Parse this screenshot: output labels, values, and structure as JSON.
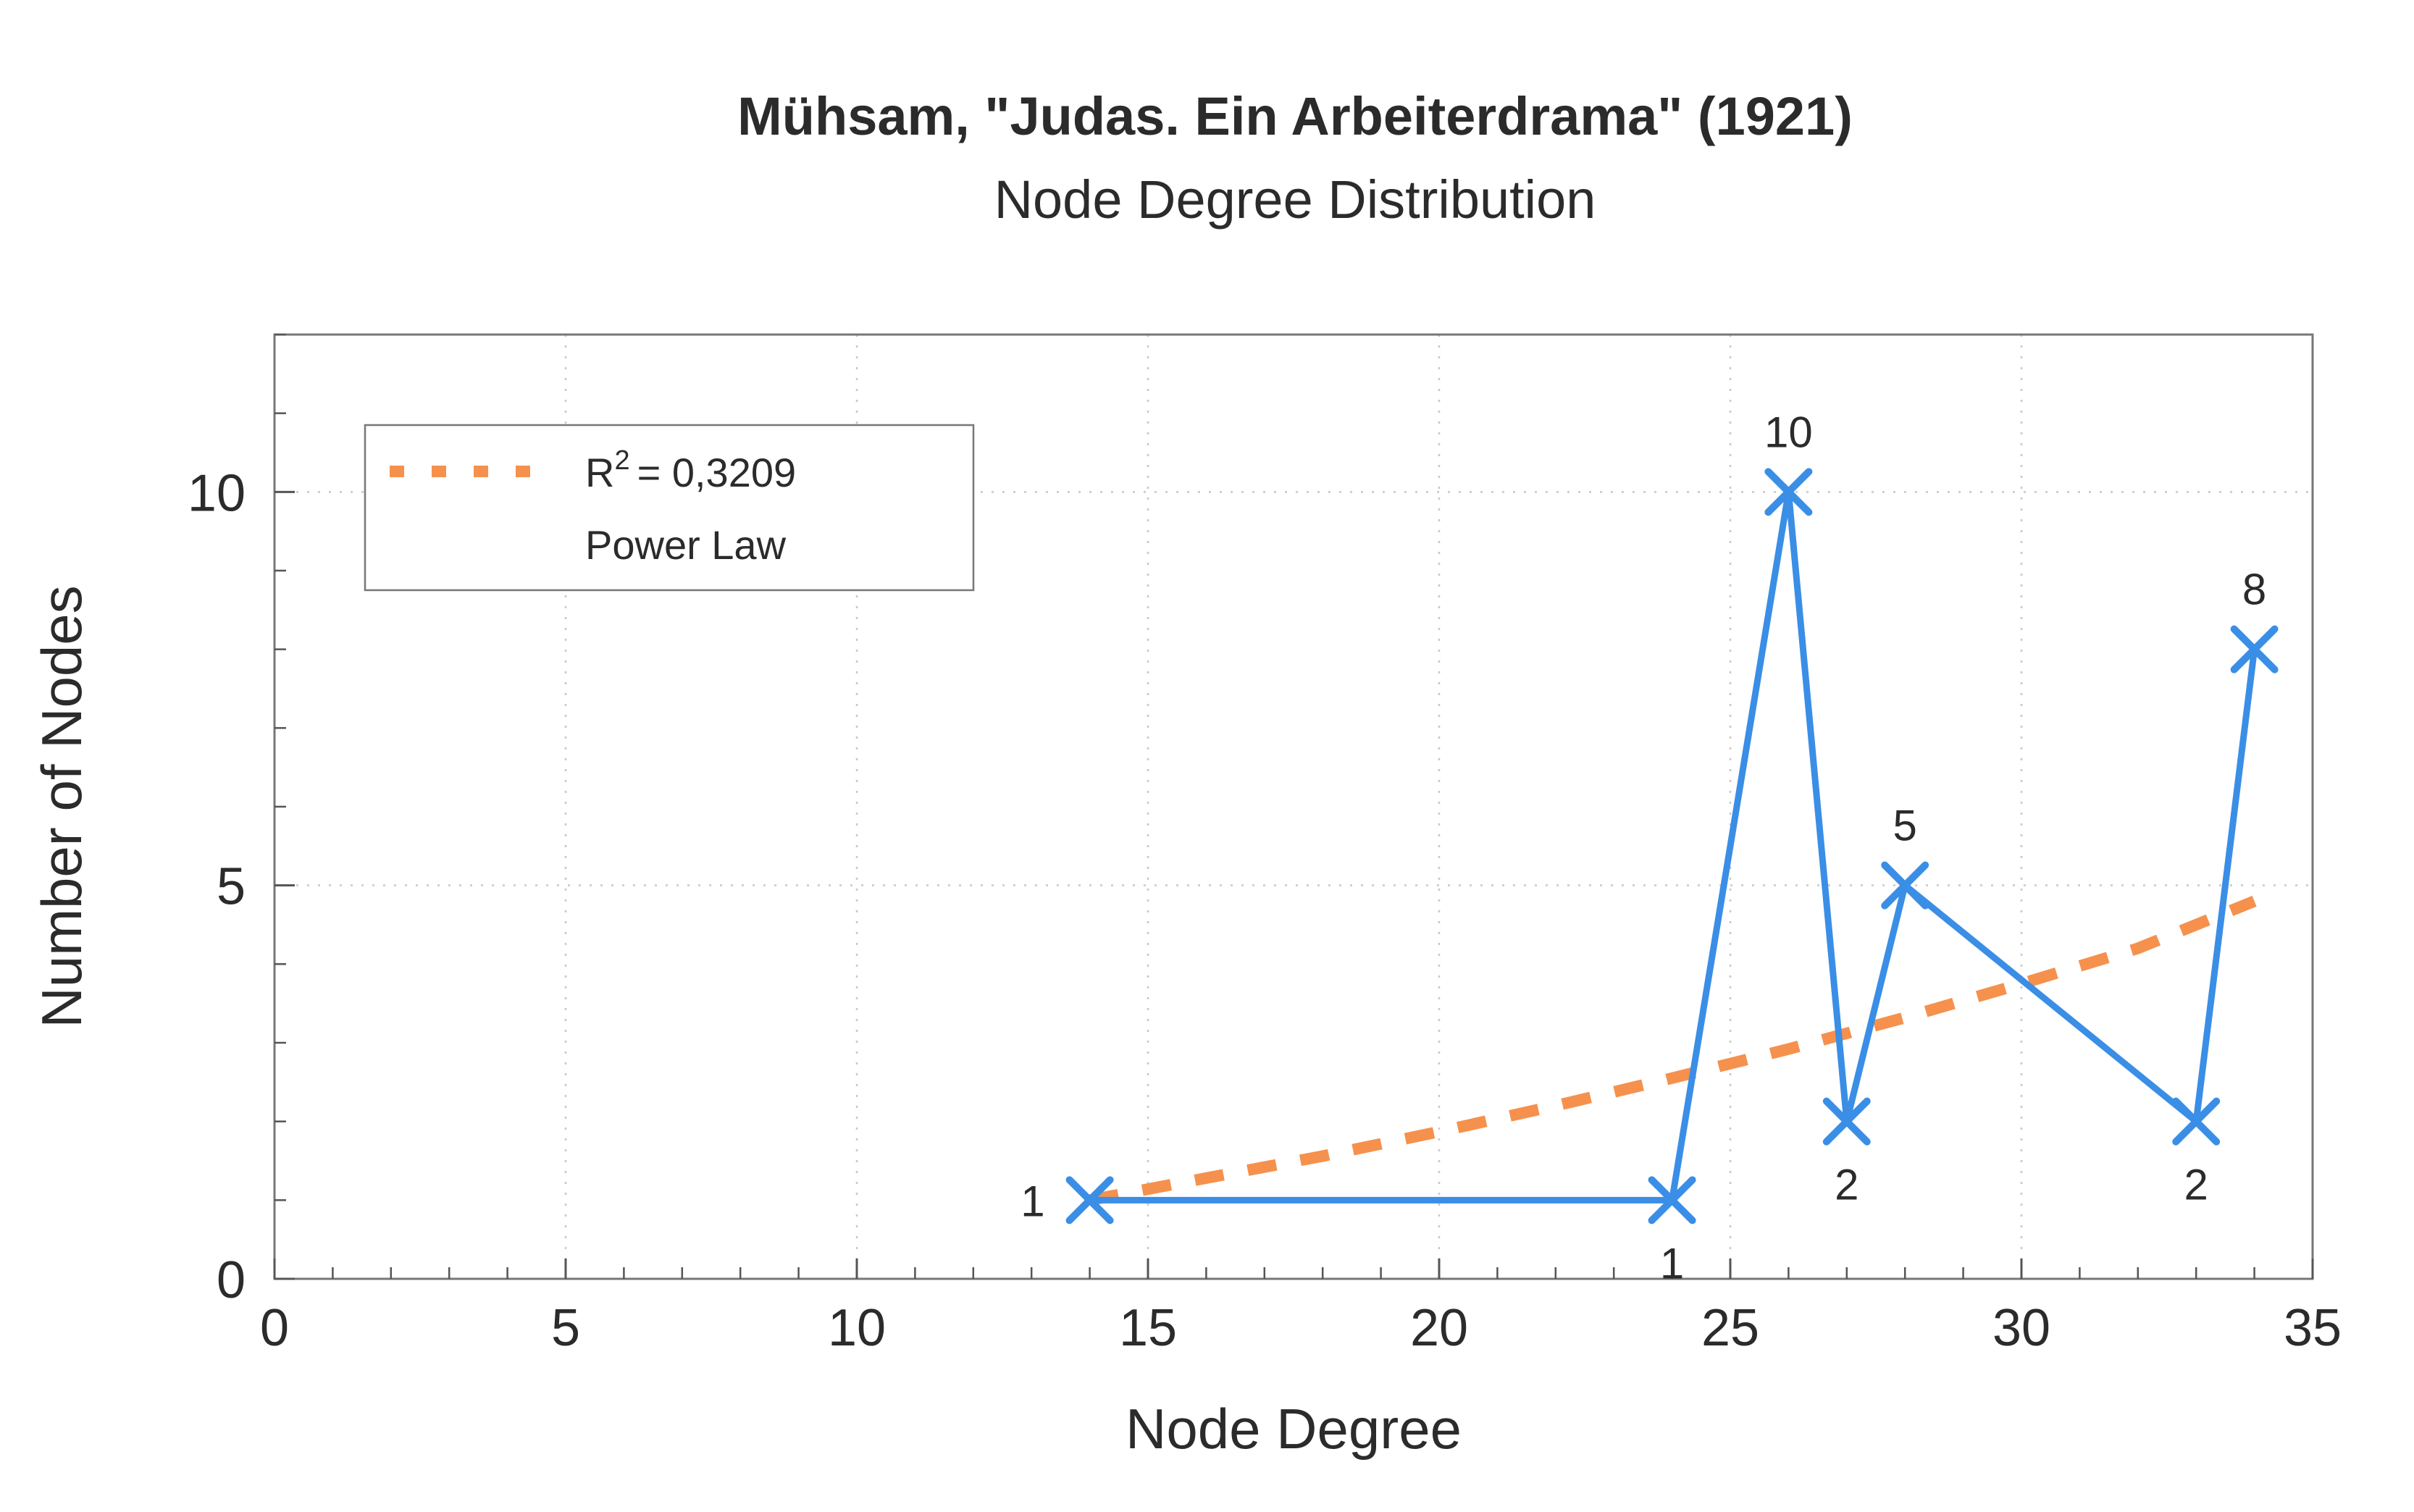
{
  "chart_data": {
    "type": "line",
    "title": "Mühsam, \"Judas. Ein Arbeiterdrama\" (1921)",
    "subtitle": "Node Degree Distribution",
    "xlabel": "Node Degree",
    "ylabel": "Number of Nodes",
    "xlim": [
      0,
      35
    ],
    "ylim": [
      0,
      12
    ],
    "xticks": [
      0,
      5,
      10,
      15,
      20,
      25,
      30,
      35
    ],
    "yticks": [
      0,
      5,
      10
    ],
    "x_minor_step": 1,
    "y_minor_step": 1,
    "grid": true,
    "legend_position": "top-left",
    "series": [
      {
        "x": [
          14,
          24,
          26,
          27,
          28,
          33,
          34
        ],
        "y": [
          1,
          1,
          10,
          2,
          5,
          2,
          8
        ],
        "labels": [
          "1",
          "1",
          "10",
          "2",
          "5",
          "2",
          "8"
        ],
        "label_positions": [
          "left",
          "below",
          "above",
          "below",
          "above",
          "below",
          "above"
        ],
        "color": "#3a8ee6",
        "marker": "x"
      }
    ],
    "fit": {
      "name": "Power Law",
      "r2_label": "R",
      "r2_superscript": "2",
      "r2_value_text": "= 0,3209",
      "color": "#f5914d",
      "x": [
        14,
        16,
        18,
        20,
        22,
        24,
        26,
        28,
        30,
        32,
        34
      ],
      "y": [
        1.0,
        1.28,
        1.56,
        1.87,
        2.2,
        2.55,
        2.92,
        3.32,
        3.75,
        4.2,
        4.8
      ]
    },
    "colors": {
      "axis": "#555555",
      "grid": "#c8c8c8",
      "text": "#2b2b2b"
    }
  }
}
